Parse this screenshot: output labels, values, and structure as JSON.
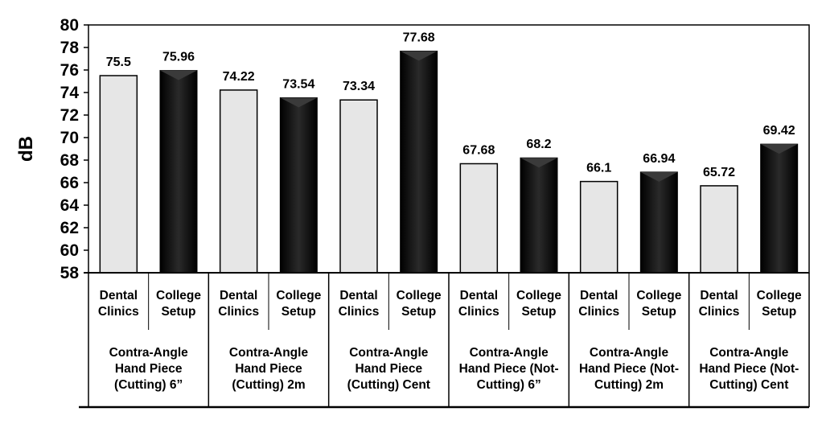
{
  "chart_data": {
    "type": "bar",
    "title": "",
    "ylabel": "dB",
    "xlabel": "",
    "ylim": [
      58,
      80
    ],
    "yticks": [
      58,
      60,
      62,
      64,
      66,
      68,
      70,
      72,
      74,
      76,
      78,
      80
    ],
    "grid": false,
    "legend": "none",
    "groups": [
      {
        "label_lines": [
          "Contra-Angle",
          "Hand Piece",
          "(Cutting) 6”"
        ],
        "bars": [
          {
            "label_lines": [
              "Dental",
              "Clinics"
            ],
            "value": 75.5,
            "value_label": "75.5",
            "color": "#e6e6e6"
          },
          {
            "label_lines": [
              "College",
              "Setup"
            ],
            "value": 75.96,
            "value_label": "75.96",
            "color": "#111111"
          }
        ]
      },
      {
        "label_lines": [
          "Contra-Angle",
          "Hand Piece",
          "(Cutting) 2m"
        ],
        "bars": [
          {
            "label_lines": [
              "Dental",
              "Clinics"
            ],
            "value": 74.22,
            "value_label": "74.22",
            "color": "#e6e6e6"
          },
          {
            "label_lines": [
              "College",
              "Setup"
            ],
            "value": 73.54,
            "value_label": "73.54",
            "color": "#111111"
          }
        ]
      },
      {
        "label_lines": [
          "Contra-Angle",
          "Hand Piece",
          "(Cutting) Cent"
        ],
        "bars": [
          {
            "label_lines": [
              "Dental",
              "Clinics"
            ],
            "value": 73.34,
            "value_label": "73.34",
            "color": "#e6e6e6"
          },
          {
            "label_lines": [
              "College",
              "Setup"
            ],
            "value": 77.68,
            "value_label": "77.68",
            "color": "#111111"
          }
        ]
      },
      {
        "label_lines": [
          "Contra-Angle",
          "Hand Piece (Not-",
          "Cutting) 6”"
        ],
        "bars": [
          {
            "label_lines": [
              "Dental",
              "Clinics"
            ],
            "value": 67.68,
            "value_label": "67.68",
            "color": "#e6e6e6"
          },
          {
            "label_lines": [
              "College",
              "Setup"
            ],
            "value": 68.2,
            "value_label": "68.2",
            "color": "#111111"
          }
        ]
      },
      {
        "label_lines": [
          "Contra-Angle",
          "Hand Piece (Not-",
          "Cutting) 2m"
        ],
        "bars": [
          {
            "label_lines": [
              "Dental",
              "Clinics"
            ],
            "value": 66.1,
            "value_label": "66.1",
            "color": "#e6e6e6"
          },
          {
            "label_lines": [
              "College",
              "Setup"
            ],
            "value": 66.94,
            "value_label": "66.94",
            "color": "#111111"
          }
        ]
      },
      {
        "label_lines": [
          "Contra-Angle",
          "Hand Piece (Not-",
          "Cutting) Cent"
        ],
        "bars": [
          {
            "label_lines": [
              "Dental",
              "Clinics"
            ],
            "value": 65.72,
            "value_label": "65.72",
            "color": "#e6e6e6"
          },
          {
            "label_lines": [
              "College",
              "Setup"
            ],
            "value": 69.42,
            "value_label": "69.42",
            "color": "#111111"
          }
        ]
      }
    ]
  }
}
